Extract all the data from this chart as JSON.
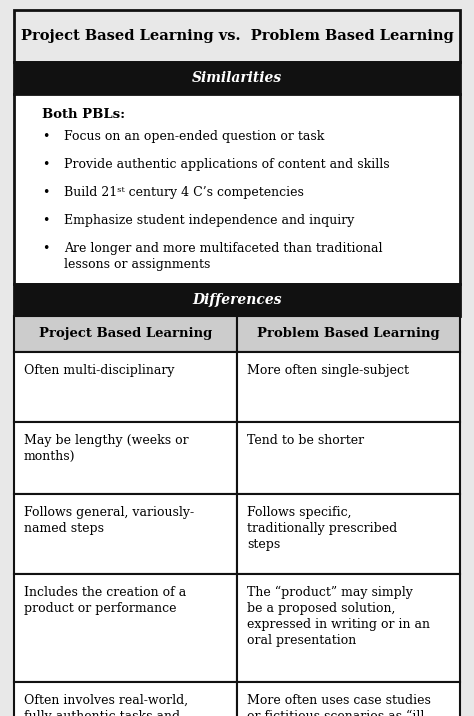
{
  "title": "Project Based Learning vs.  Problem Based Learning",
  "similarities_header": "Similarities",
  "similarities_bold": "Both PBLs:",
  "similarities_bullets": [
    "Focus on an open-ended question or task",
    "Provide authentic applications of content and skills",
    "Build 21ˢᵗ century 4 C’s competencies",
    "Emphasize student independence and inquiry",
    "Are longer and more multifaceted than traditional\nlessons or assignments"
  ],
  "differences_header": "Differences",
  "col1_header": "Project Based Learning",
  "col2_header": "Problem Based Learning",
  "differences_rows": [
    [
      "Often multi-disciplinary",
      "More often single-subject"
    ],
    [
      "May be lengthy (weeks or\nmonths)",
      "Tend to be shorter"
    ],
    [
      "Follows general, variously-\nnamed steps",
      "Follows specific,\ntraditionally prescribed\nsteps"
    ],
    [
      "Includes the creation of a\nproduct or performance",
      "The “product” may simply\nbe a proposed solution,\nexpressed in writing or in an\noral presentation"
    ],
    [
      "Often involves real-world,\nfully authentic tasks and\nsettings",
      "More often uses case studies\nor fictitious scenarios as “ill-\nstructured problems”"
    ]
  ],
  "fig_w": 4.74,
  "fig_h": 7.16,
  "dpi": 100,
  "bg_color": "#e8e8e8",
  "header_bg": "#111111",
  "header_fg": "#ffffff",
  "col_header_bg": "#cccccc",
  "body_bg": "#ffffff",
  "border_color": "#111111",
  "title_fontsize": 10.5,
  "header_fontsize": 10,
  "col_header_fontsize": 9.5,
  "body_fontsize": 9
}
